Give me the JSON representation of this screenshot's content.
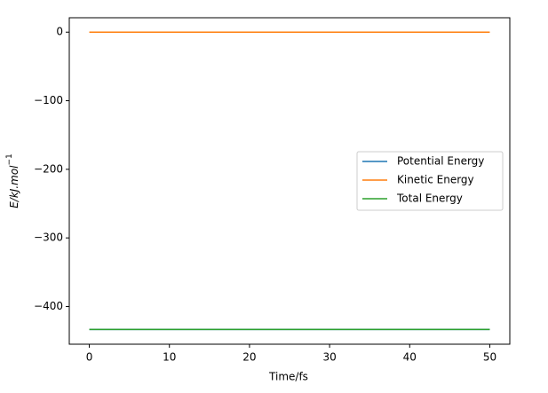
{
  "chart_data": {
    "type": "line",
    "xlabel": "Time/fs",
    "ylabel": {
      "text": "E/kJ.mol",
      "superscript": "−1"
    },
    "x": [
      0,
      50
    ],
    "series": [
      {
        "name": "Potential Energy",
        "color": "#1f77b4",
        "values": [
          -433.5,
          -433.5
        ]
      },
      {
        "name": "Kinetic Energy",
        "color": "#ff7f0e",
        "values": [
          0,
          0
        ]
      },
      {
        "name": "Total Energy",
        "color": "#2ca02c",
        "values": [
          -433.5,
          -433.5
        ]
      }
    ],
    "xlim": [
      -2.5,
      52.5
    ],
    "xticks": [
      0,
      10,
      20,
      30,
      40,
      50
    ],
    "ylim": [
      -455,
      21
    ],
    "yticks": [
      0,
      {
        "value": -100,
        "label": "−100"
      },
      {
        "value": -200,
        "label": "−200"
      },
      {
        "value": -300,
        "label": "−300"
      },
      {
        "value": -400,
        "label": "−400"
      }
    ],
    "legend": "center right"
  }
}
